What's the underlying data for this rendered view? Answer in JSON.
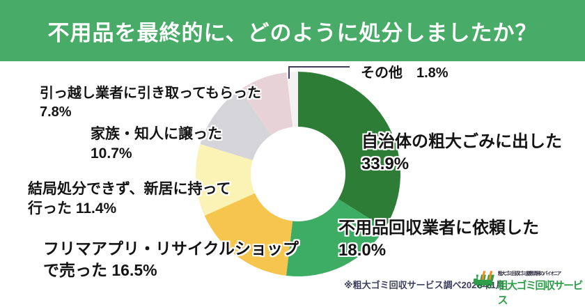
{
  "header": {
    "title": "不用品を最終的に、どのように処分しましたか？",
    "bg_color": "#48ab68"
  },
  "chart_data": {
    "type": "pie",
    "subtype": "donut",
    "title": "不用品を最終的に、どのように処分しましたか？",
    "unit": "%",
    "categories": [
      "自治体の粗大ごみに出した",
      "不用品回収業者に依頼した",
      "フリマアプリ・リサイクルショップで売った",
      "結局処分できず、新居に持って行った",
      "家族・知人に譲った",
      "引っ越し業者に引き取ってもらった",
      "その他"
    ],
    "values": [
      33.9,
      18.0,
      16.5,
      11.4,
      10.7,
      7.8,
      1.8
    ],
    "colors": [
      "#2e7d36",
      "#3dad64",
      "#f6c54e",
      "#fbf3b5",
      "#d5d4d8",
      "#e7d2d8",
      "#f4f1f2"
    ],
    "start_angle_deg": 0,
    "direction": "clockwise",
    "donut_hole_ratio": 0.46,
    "legend_position": "labels-around-donut"
  },
  "labels": {
    "sonota": {
      "line1": "その他　1.8%"
    },
    "jichitai": {
      "line1": "自治体の粗大ごみに出した",
      "line2": "33.9%"
    },
    "fuyohin": {
      "line1": "不用品回収業者に依頼した",
      "line2": "18.0%"
    },
    "furima": {
      "line1": "フリマアプリ・リサイクルショップ",
      "line2": "で売った 16.5%"
    },
    "kekkyoku": {
      "line1": "結局処分できず、新居に持って",
      "line2": "行った 11.4%"
    },
    "kazoku": {
      "line1": "家族・知人に譲った",
      "line2": "10.7%"
    },
    "hikkoshi": {
      "line1": "引っ越し業者に引き取ってもらった",
      "line2": "7.8%"
    }
  },
  "callout": {
    "color": "#3f3f63"
  },
  "footnote": "※粗大ゴミ回収サービス調べ2026年1月",
  "logo": {
    "tagline": "粗大ゴミ回収/ゴミ屋敷清掃のパイオニア",
    "name": "粗大ゴミ回収サービス",
    "name_color": "#2f9e4a",
    "truck_green": "#2f9e4a",
    "truck_dark": "#1d6b38",
    "accent_orange": "#f08c1e"
  }
}
